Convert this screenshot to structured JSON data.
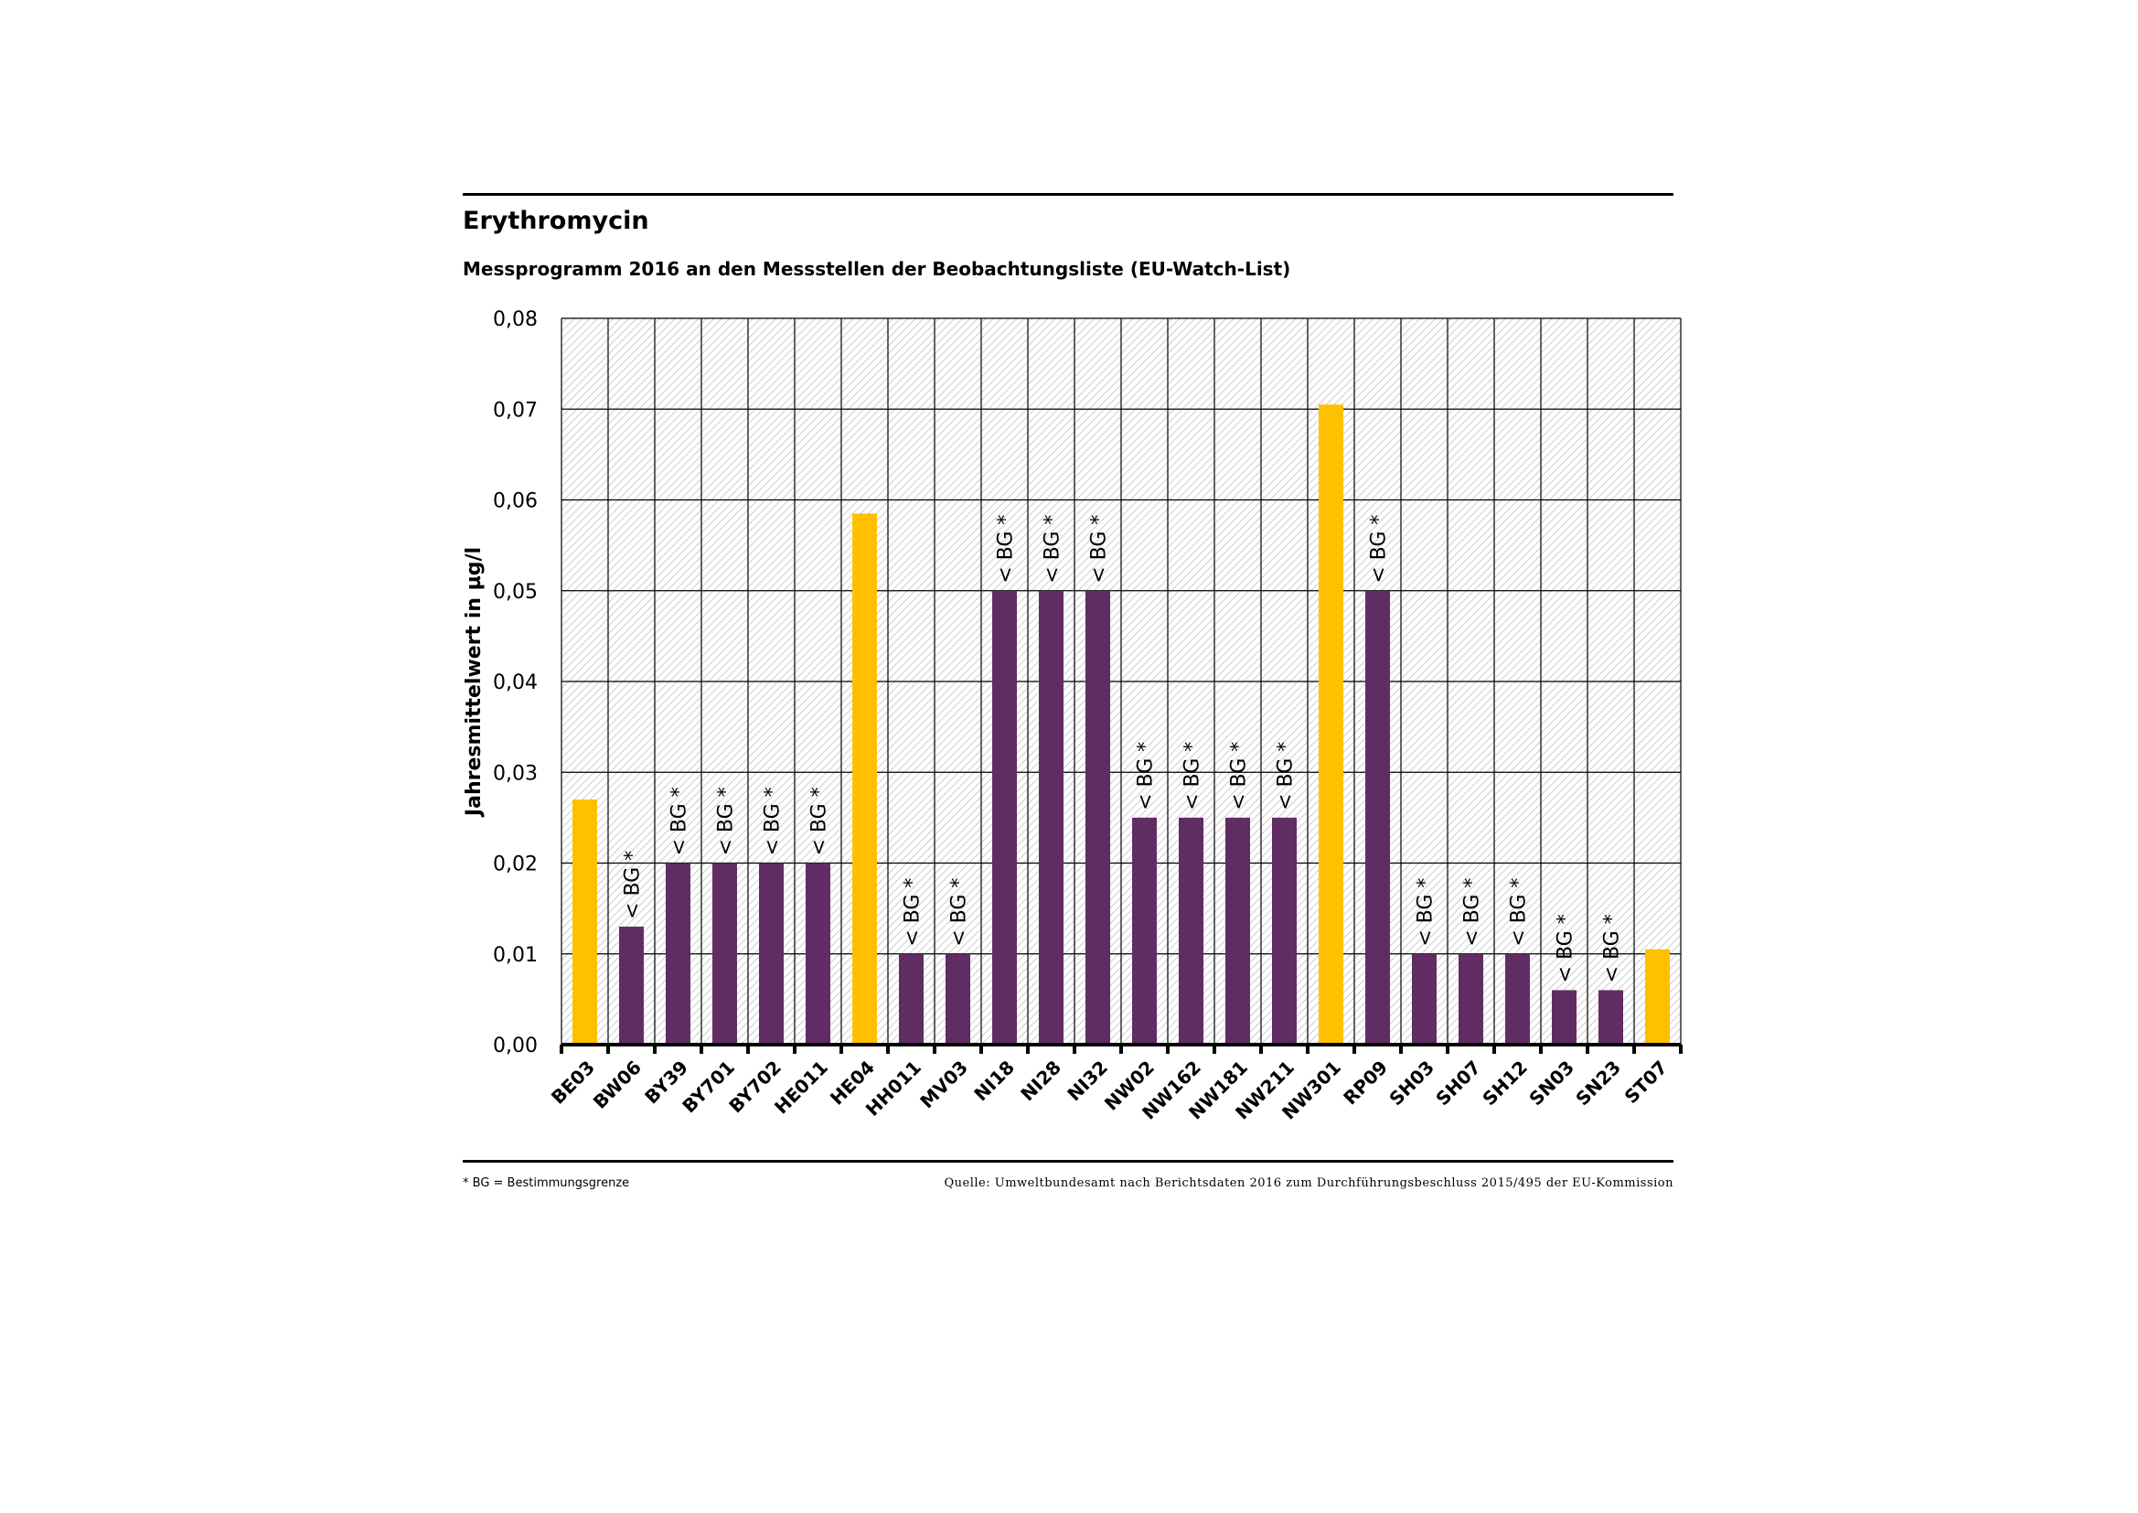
{
  "header": {
    "title": "Erythromycin",
    "subtitle": "Messprogramm 2016 an den Messstellen der Beobachtungsliste (EU-Watch-List)"
  },
  "footer": {
    "footnote": "* BG = Bestimmungsgrenze",
    "source": "Quelle: Umweltbundesamt nach Berichtsdaten 2016 zum Durchführungsbeschluss 2015/495 der EU-Kommission"
  },
  "chart_data": {
    "type": "bar",
    "title": "Erythromycin",
    "xlabel": "",
    "ylabel": "Jahresmittelwert in µg/l",
    "ylim": [
      0,
      0.08
    ],
    "yticks": [
      "0,00",
      "0,01",
      "0,02",
      "0,03",
      "0,04",
      "0,05",
      "0,06",
      "0,07",
      "0,08"
    ],
    "grid": true,
    "categories": [
      "BE03",
      "BW06",
      "BY39",
      "BY701",
      "BY702",
      "HE011",
      "HE04",
      "HH011",
      "MV03",
      "NI18",
      "NI28",
      "NI32",
      "NW02",
      "NW162",
      "NW181",
      "NW211",
      "NW301",
      "RP09",
      "SH03",
      "SH07",
      "SH12",
      "SN03",
      "SN23",
      "ST07"
    ],
    "values": [
      0.027,
      0.013,
      0.02,
      0.02,
      0.02,
      0.02,
      0.0585,
      0.01,
      0.01,
      0.05,
      0.05,
      0.05,
      0.025,
      0.025,
      0.025,
      0.025,
      0.0705,
      0.05,
      0.01,
      0.01,
      0.01,
      0.006,
      0.006,
      0.0105
    ],
    "below_bg": [
      false,
      true,
      true,
      true,
      true,
      true,
      false,
      true,
      true,
      true,
      true,
      true,
      true,
      true,
      true,
      true,
      false,
      true,
      true,
      true,
      true,
      true,
      true,
      false
    ],
    "bg_label": "< BG *",
    "colors": {
      "measured": "#FFC000",
      "below_bg": "#612C63"
    }
  }
}
